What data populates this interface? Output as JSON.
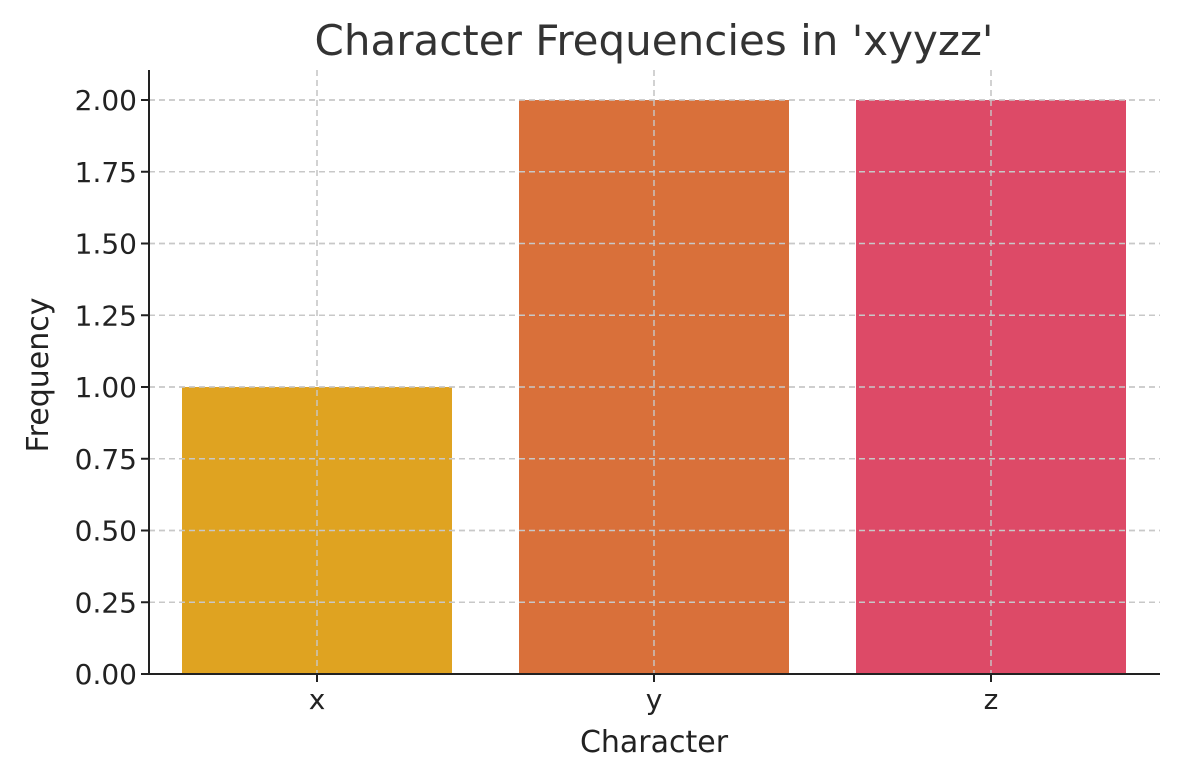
{
  "chart_data": {
    "type": "bar",
    "title": "Character Frequencies in 'xyyzz'",
    "xlabel": "Character",
    "ylabel": "Frequency",
    "categories": [
      "x",
      "y",
      "z"
    ],
    "values": [
      1,
      2,
      2
    ],
    "colors": [
      "#DFA321",
      "#D9703A",
      "#DD4A67"
    ],
    "ylim": [
      0,
      2.1
    ],
    "yticks": [
      "0.00",
      "0.25",
      "0.50",
      "0.75",
      "1.00",
      "1.25",
      "1.50",
      "1.75",
      "2.00"
    ],
    "grid": true,
    "legend": "none"
  }
}
